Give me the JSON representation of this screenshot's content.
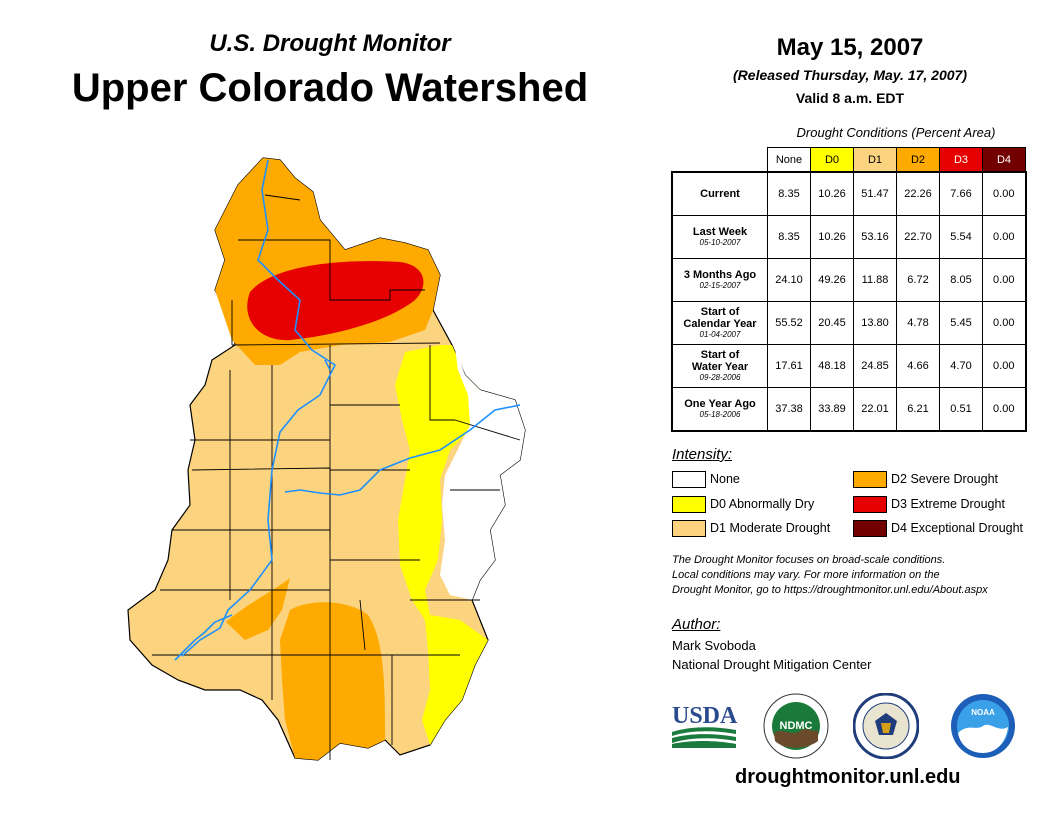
{
  "header": {
    "subtitle": "U.S. Drought Monitor",
    "title": "Upper Colorado Watershed",
    "date": "May 15, 2007",
    "released": "(Released Thursday, May. 17, 2007)",
    "valid": "Valid 8 a.m. EDT"
  },
  "table": {
    "caption": "Drought Conditions (Percent Area)",
    "columns": [
      "None",
      "D0",
      "D1",
      "D2",
      "D3",
      "D4"
    ],
    "rows": [
      {
        "label": "Current",
        "label2": "",
        "date": "",
        "values": [
          "8.35",
          "10.26",
          "51.47",
          "22.26",
          "7.66",
          "0.00"
        ]
      },
      {
        "label": "Last Week",
        "label2": "",
        "date": "05-10-2007",
        "values": [
          "8.35",
          "10.26",
          "53.16",
          "22.70",
          "5.54",
          "0.00"
        ]
      },
      {
        "label": "3 Months Ago",
        "label2": "",
        "date": "02-15-2007",
        "values": [
          "24.10",
          "49.26",
          "11.88",
          "6.72",
          "8.05",
          "0.00"
        ]
      },
      {
        "label": "Start of",
        "label2": "Calendar Year",
        "date": "01-04-2007",
        "values": [
          "55.52",
          "20.45",
          "13.80",
          "4.78",
          "5.45",
          "0.00"
        ]
      },
      {
        "label": "Start of",
        "label2": "Water Year",
        "date": "09-28-2006",
        "values": [
          "17.61",
          "48.18",
          "24.85",
          "4.66",
          "4.70",
          "0.00"
        ]
      },
      {
        "label": "One Year Ago",
        "label2": "",
        "date": "05-18-2006",
        "values": [
          "37.38",
          "33.89",
          "22.01",
          "6.21",
          "0.51",
          "0.00"
        ]
      }
    ]
  },
  "legend": {
    "title": "Intensity:",
    "items": [
      {
        "label": "None",
        "color": "#ffffff"
      },
      {
        "label": "D0 Abnormally Dry",
        "color": "#ffff00"
      },
      {
        "label": "D1 Moderate Drought",
        "color": "#fcd37f"
      },
      {
        "label": "D2 Severe Drought",
        "color": "#ffaa00"
      },
      {
        "label": "D3 Extreme Drought",
        "color": "#e60000"
      },
      {
        "label": "D4 Exceptional Drought",
        "color": "#730000"
      }
    ]
  },
  "note": {
    "line1": "The Drought Monitor focuses on broad-scale conditions.",
    "line2": "Local conditions may vary. For more information on the",
    "line3": "Drought Monitor, go to https://droughtmonitor.unl.edu/About.aspx"
  },
  "author": {
    "title": "Author:",
    "name": "Mark Svoboda",
    "org": "National Drought Mitigation Center"
  },
  "logos": {
    "usda": "USDA",
    "ndmc": "NDMC",
    "noaa": "NOAA"
  },
  "website": "droughtmonitor.unl.edu",
  "colors": {
    "none": "#ffffff",
    "d0": "#ffff00",
    "d1": "#fcd37f",
    "d2": "#ffaa00",
    "d3": "#e60000",
    "d4": "#730000",
    "river": "#1e90ff"
  }
}
